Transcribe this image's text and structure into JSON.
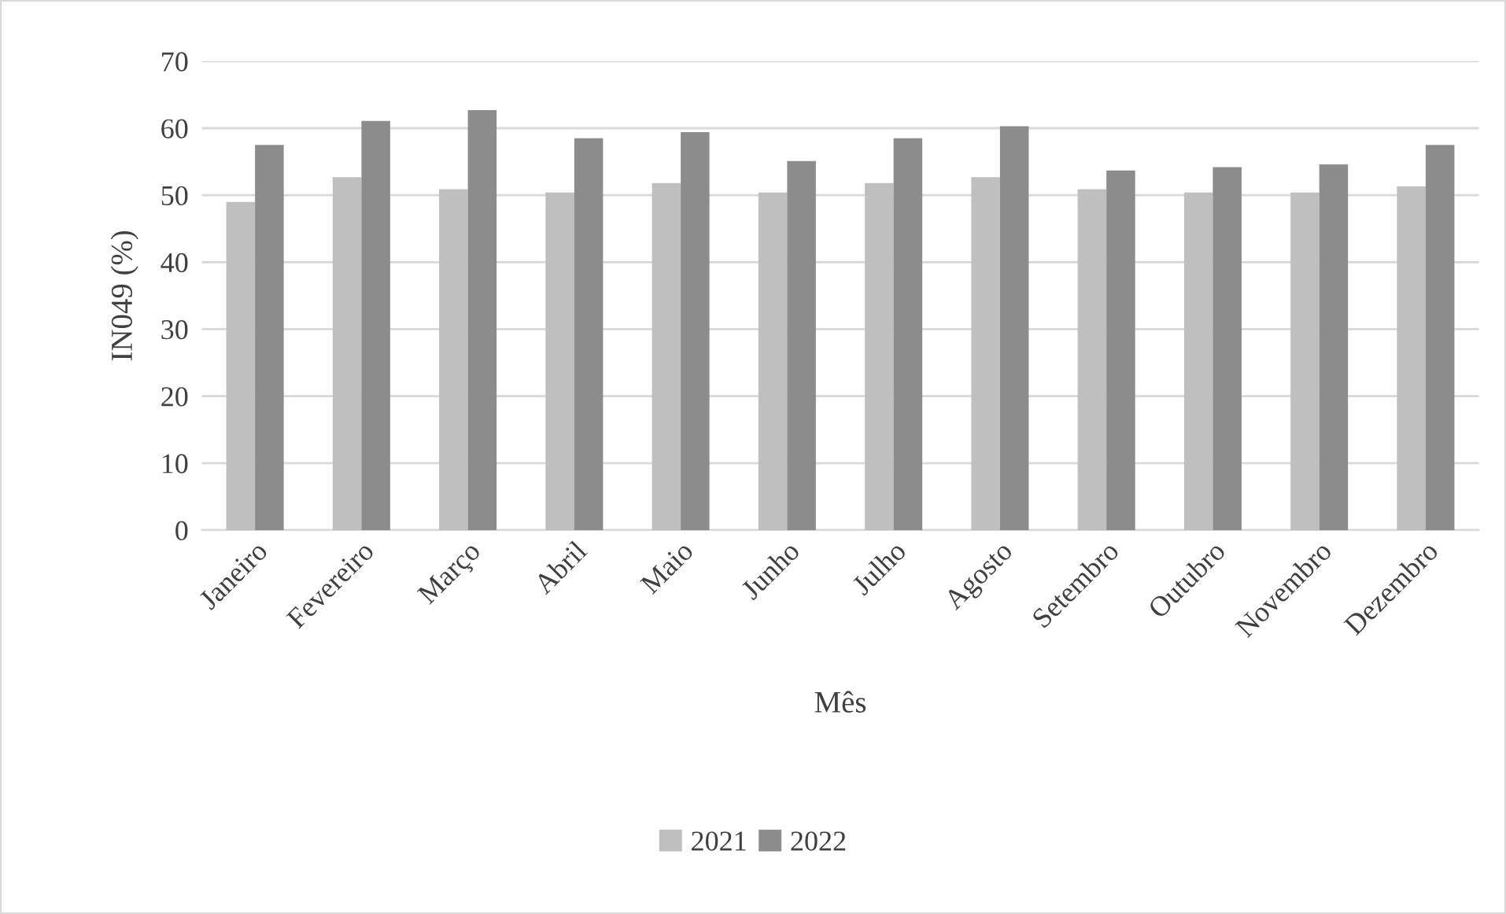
{
  "chart_data": {
    "type": "bar",
    "xlabel": "Mês",
    "ylabel": "IN049 (%)",
    "categories": [
      "Janeiro",
      "Fevereiro",
      "Março",
      "Abril",
      "Maio",
      "Junho",
      "Julho",
      "Agosto",
      "Setembro",
      "Outubro",
      "Novembro",
      "Dezembro"
    ],
    "series": [
      {
        "name": "2021",
        "color": "#bfbfbf",
        "values": [
          49.0,
          52.7,
          50.9,
          50.4,
          51.8,
          50.4,
          51.8,
          52.7,
          50.9,
          50.4,
          50.4,
          51.3
        ]
      },
      {
        "name": "2022",
        "color": "#8c8c8c",
        "values": [
          57.5,
          61.1,
          62.7,
          58.5,
          59.4,
          55.1,
          58.5,
          60.3,
          53.7,
          54.2,
          54.6,
          57.5
        ]
      }
    ],
    "ylim": [
      0,
      70
    ],
    "yticks": [
      0,
      10,
      20,
      30,
      40,
      50,
      60,
      70
    ],
    "grid": "y",
    "legend": "bottom"
  }
}
